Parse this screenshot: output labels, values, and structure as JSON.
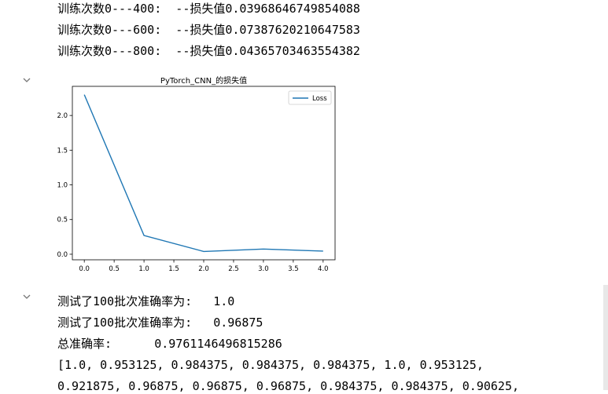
{
  "cell1": {
    "lines": [
      "训练次数0---400:  --损失值0.03968646749854088",
      "训练次数0---600:  --损失值0.07387620210647583",
      "训练次数0---800:  --损失值0.04365703463554382"
    ]
  },
  "cell2": {
    "collapse_icon": "chevron-down-icon"
  },
  "chart_data": {
    "type": "line",
    "title": "PyTorch_CNN_的损失值",
    "x": [
      0.0,
      1.0,
      2.0,
      3.0,
      4.0
    ],
    "series": [
      {
        "name": "Loss",
        "values": [
          2.3,
          0.27,
          0.04,
          0.075,
          0.045
        ],
        "color": "#1f77b4"
      }
    ],
    "xticks": [
      "0.0",
      "0.5",
      "1.0",
      "1.5",
      "2.0",
      "2.5",
      "3.0",
      "3.5",
      "4.0"
    ],
    "xtick_values": [
      0.0,
      0.5,
      1.0,
      1.5,
      2.0,
      2.5,
      3.0,
      3.5,
      4.0
    ],
    "yticks": [
      "0.0",
      "0.5",
      "1.0",
      "1.5",
      "2.0"
    ],
    "ytick_values": [
      0.0,
      0.5,
      1.0,
      1.5,
      2.0
    ],
    "xlim": [
      -0.2,
      4.2
    ],
    "ylim": [
      -0.08,
      2.42
    ],
    "grid": false,
    "legend": "top-right",
    "xlabel": "",
    "ylabel": ""
  },
  "cell3": {
    "lines": [
      "测试了100批次准确率为:   1.0",
      "测试了100批次准确率为:   0.96875",
      "总准确率:      0.9761146496815286",
      "[1.0, 0.953125, 0.984375, 0.984375, 0.984375, 1.0, 0.953125,",
      "0.921875, 0.96875, 0.96875, 0.96875, 0.984375, 0.984375, 0.90625,"
    ]
  }
}
